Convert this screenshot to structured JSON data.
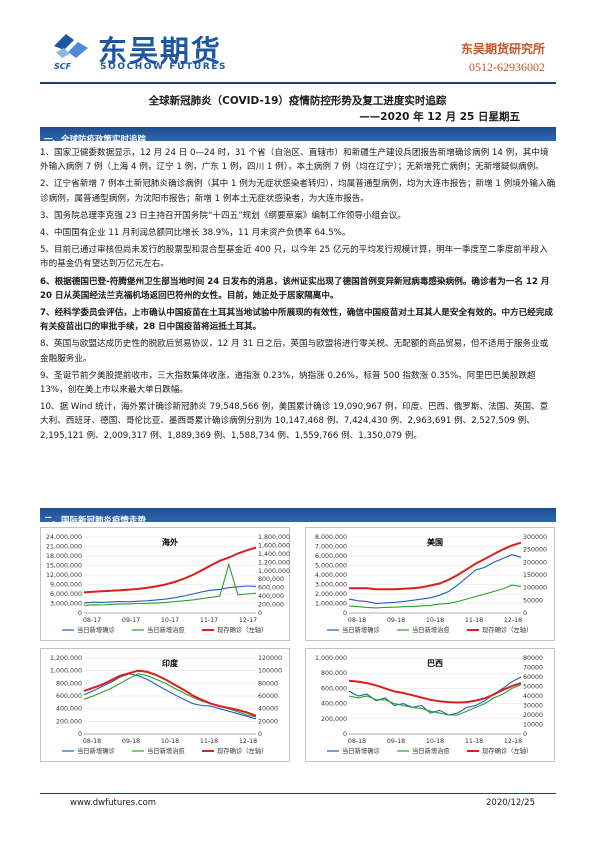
{
  "header": {
    "brand_cn": "东吴期货",
    "brand_en": "SOOCHOW FUTURES",
    "logo_text": "SCF",
    "institute": "东吴期货研究所",
    "phone": "0512-62936002"
  },
  "title": "全球新冠肺炎（COVID-19）疫情防控形势及复工进度实时追踪",
  "date_line": "——2020 年 12 月 25 日星期五",
  "section1": {
    "heading": "一、全球防疫政策实时追踪",
    "items": [
      {
        "text": "1、国家卫健委数据显示，12 月 24 日 0—24 时，31 个省（自治区、直辖市）和新疆生产建设兵团报告新增确诊病例 14 例，其中境外输入病例 7 例（上海 4 例，辽宁 1 例，广东 1 例，四川 1 例），本土病例 7 例（均在辽宁）；无新增死亡病例；无新增疑似病例。",
        "bold": false
      },
      {
        "text": "2、辽宁省新增 7 例本土新冠肺炎确诊病例（其中 1 例为无症状感染者转归），均属普通型病例，均为大连市报告；新增 1 例境外输入确诊病例，属普通型病例，为沈阳市报告；新增 1 例本土无症状感染者，为大连市报告。",
        "bold": false
      },
      {
        "text": "3、国务院总理李克强 23 日主持召开国务院“十四五”规划《纲要草案》编制工作领导小组会议。",
        "bold": false
      },
      {
        "text": "4、中国国有企业 11 月利润总额同比增长 38.9%，11 月末资产负债率 64.5%。",
        "bold": false
      },
      {
        "text": "5、目前已通过审核但尚未发行的股票型和混合型基金近 400 只，以今年 25 亿元的平均发行规模计算，明年一季度至二季度前半段入市的基金仍有望达到万亿元左右。",
        "bold": false
      },
      {
        "text": "6、根据德国巴登-符腾堡州卫生部当地时间 24 日发布的消息，该州证实出现了德国首例变异新冠病毒感染病例。确诊者为一名 12 月 20 日从英国经法兰克福机场返回巴符州的女性。目前，她正处于居家隔离中。",
        "bold": true
      },
      {
        "text": "7、经科学委员会评估，上市确认中国疫苗在土耳其当地试验中所展现的有效性，确信中国疫苗对土耳其人是安全有效的。中方已经完成有关疫苗出口的审批手续，28 日中国疫苗将运抵土耳其。",
        "bold": true
      },
      {
        "text": "8、英国与欧盟达成历史性的脱欧后贸易协议，12 月 31 日之后，英国与欧盟将进行零关税、无配额的商品贸易，但不适用于服务业或金融服务业。",
        "bold": false
      },
      {
        "text": "9、圣诞节前夕美股提前收市，三大指数集体收涨，道指涨 0.23%，纳指涨 0.26%，标普 500 指数涨 0.35%。阿里巴巴美股跌超 13%，创在美上市以来最大单日跌幅。",
        "bold": false
      },
      {
        "text": "10、据 Wind 统计，海外累计确诊新冠肺炎 79,548,566 例，美国累计确诊 19,090,967 例，印度、巴西、俄罗斯、法国、英国、意大利、西班牙、德国、哥伦比亚、墨西哥累计确诊病例分别为 10,147,468 例、7,424,430 例、2,963,691 例、2,527,509 例、2,195,121 例、2,009,317 例、1,889,369 例、1,588,734 例、1,559,766 例、1,350,079 例。",
        "bold": false
      }
    ]
  },
  "section2": {
    "heading": "二、国际新冠肺炎疫情走势"
  },
  "colors": {
    "new_confirmed": "#1f5fbf",
    "new_recovered": "#2aa02a",
    "active": "#d92020",
    "brand": "#1d57a3",
    "accent": "#c4562a"
  },
  "chart_data": [
    {
      "type": "line",
      "title": "海外",
      "x_ticks": [
        "08-17",
        "09-17",
        "10-17",
        "11-17",
        "12-17"
      ],
      "y_left_ticks": [
        "0",
        "3,000,000",
        "6,000,000",
        "9,000,000",
        "12,000,000",
        "15,000,000",
        "18,000,000",
        "21,000,000",
        "24,000,000"
      ],
      "y_right_ticks": [
        "0",
        "200,000",
        "400,000",
        "600,000",
        "800,000",
        "1,000,000",
        "1,200,000",
        "1,400,000",
        "1,600,000",
        "1,800,000"
      ],
      "ylim_left": [
        0,
        24000000
      ],
      "ylim_right": [
        0,
        1800000
      ],
      "legend": [
        "当日新增确诊",
        "当日新增治愈",
        "现存确诊（左轴）"
      ],
      "series": [
        {
          "name": "当日新增确诊",
          "axis": "right",
          "values": [
            240000,
            255000,
            250000,
            262000,
            270000,
            265000,
            280000,
            290000,
            310000,
            330000,
            360000,
            400000,
            450000,
            500000,
            540000,
            560000,
            600000,
            620000,
            640000,
            630000
          ]
        },
        {
          "name": "当日新增治愈",
          "axis": "right",
          "values": [
            180000,
            195000,
            190000,
            205000,
            210000,
            215000,
            225000,
            230000,
            240000,
            250000,
            270000,
            290000,
            310000,
            340000,
            370000,
            400000,
            1150000,
            430000,
            450000,
            470000
          ]
        },
        {
          "name": "现存确诊（左轴）",
          "axis": "left",
          "values": [
            6500000,
            6700000,
            6900000,
            7000000,
            7200000,
            7400000,
            7600000,
            8000000,
            8400000,
            9000000,
            9800000,
            10800000,
            12000000,
            13500000,
            15000000,
            16500000,
            17500000,
            18800000,
            19800000,
            20700000
          ]
        }
      ]
    },
    {
      "type": "line",
      "title": "美国",
      "x_ticks": [
        "08-18",
        "09-18",
        "10-18",
        "11-18",
        "12-18"
      ],
      "y_left_ticks": [
        "0",
        "1,000,000",
        "2,000,000",
        "3,000,000",
        "4,000,000",
        "5,000,000",
        "6,000,000",
        "7,000,000",
        "8,000,000"
      ],
      "y_right_ticks": [
        "0",
        "50000",
        "100000",
        "150000",
        "200000",
        "250000",
        "300000"
      ],
      "ylim_left": [
        0,
        8000000
      ],
      "ylim_right": [
        0,
        300000
      ],
      "legend": [
        "当日新增确诊",
        "当日新增治愈",
        "现存确诊（左轴）"
      ],
      "series": [
        {
          "name": "当日新增确诊",
          "axis": "right",
          "values": [
            55000,
            48000,
            45000,
            38000,
            40000,
            42000,
            45000,
            50000,
            55000,
            60000,
            70000,
            85000,
            110000,
            140000,
            170000,
            180000,
            200000,
            215000,
            230000,
            220000
          ]
        },
        {
          "name": "当日新增治愈",
          "axis": "right",
          "values": [
            28000,
            25000,
            22000,
            20000,
            22000,
            23000,
            25000,
            26000,
            28000,
            30000,
            35000,
            38000,
            45000,
            55000,
            65000,
            75000,
            85000,
            95000,
            110000,
            105000
          ]
        },
        {
          "name": "现存确诊（左轴）",
          "axis": "left",
          "values": [
            2600000,
            2600000,
            2600000,
            2500000,
            2500000,
            2500000,
            2550000,
            2600000,
            2700000,
            2900000,
            3100000,
            3500000,
            4000000,
            4600000,
            5200000,
            5700000,
            6200000,
            6700000,
            7100000,
            7400000
          ]
        }
      ]
    },
    {
      "type": "line",
      "title": "印度",
      "x_ticks": [
        "08-18",
        "09-18",
        "10-18",
        "11-18",
        "12-18"
      ],
      "y_left_ticks": [
        "0",
        "200,000",
        "400,000",
        "600,000",
        "800,000",
        "1,000,000",
        "1,200,000"
      ],
      "y_right_ticks": [
        "0",
        "20000",
        "40000",
        "60000",
        "80000",
        "100000",
        "120000"
      ],
      "ylim_left": [
        0,
        1200000
      ],
      "ylim_right": [
        0,
        120000
      ],
      "legend": [
        "当日新增确诊",
        "当日新增治愈",
        "现存确诊（左轴）"
      ],
      "series": [
        {
          "name": "当日新增确诊",
          "axis": "right",
          "values": [
            62000,
            68000,
            75000,
            82000,
            90000,
            95000,
            92000,
            86000,
            78000,
            70000,
            62000,
            55000,
            48000,
            45000,
            44000,
            40000,
            36000,
            32000,
            28000,
            24000
          ]
        },
        {
          "name": "当日新增治愈",
          "axis": "right",
          "values": [
            55000,
            60000,
            66000,
            72000,
            80000,
            88000,
            95000,
            92000,
            86000,
            80000,
            72000,
            65000,
            58000,
            52000,
            48000,
            44000,
            40000,
            35000,
            30000,
            27000
          ]
        },
        {
          "name": "现存确诊（左轴）",
          "axis": "left",
          "values": [
            680000,
            730000,
            780000,
            850000,
            920000,
            960000,
            1000000,
            980000,
            930000,
            860000,
            780000,
            700000,
            610000,
            540000,
            480000,
            440000,
            410000,
            380000,
            340000,
            290000
          ]
        }
      ]
    },
    {
      "type": "line",
      "title": "巴西",
      "x_ticks": [
        "08-18",
        "09-18",
        "10-18",
        "11-18",
        "12-18"
      ],
      "y_left_ticks": [
        "0",
        "200,000",
        "400,000",
        "600,000",
        "800,000",
        "1,000,000"
      ],
      "y_right_ticks": [
        "0",
        "10000",
        "20000",
        "30000",
        "40000",
        "50000",
        "60000",
        "70000",
        "80000"
      ],
      "ylim_left": [
        0,
        1000000
      ],
      "ylim_right": [
        0,
        80000
      ],
      "legend": [
        "当日新增确诊",
        "当日新增治愈",
        "现存确诊（左轴）"
      ],
      "series": [
        {
          "name": "当日新增确诊",
          "axis": "right",
          "values": [
            45000,
            40000,
            42000,
            35000,
            38000,
            30000,
            32000,
            28000,
            30000,
            22000,
            25000,
            20000,
            22000,
            28000,
            30000,
            35000,
            42000,
            48000,
            55000,
            60000
          ]
        },
        {
          "name": "当日新增治愈",
          "axis": "right",
          "values": [
            40000,
            38000,
            40000,
            36000,
            36000,
            32000,
            30000,
            28000,
            27000,
            24000,
            22000,
            20000,
            20000,
            24000,
            28000,
            32000,
            38000,
            42000,
            48000,
            52000
          ]
        },
        {
          "name": "现存确诊（左轴）",
          "axis": "left",
          "values": [
            700000,
            690000,
            670000,
            640000,
            600000,
            560000,
            540000,
            510000,
            480000,
            450000,
            430000,
            420000,
            415000,
            420000,
            440000,
            470000,
            520000,
            580000,
            630000,
            670000
          ]
        }
      ]
    }
  ],
  "footer": {
    "url": "www.dwfutures.com",
    "date": "2020/12/25"
  }
}
